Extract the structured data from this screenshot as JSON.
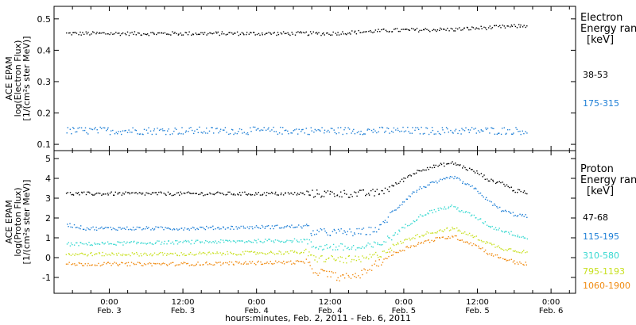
{
  "xaxis": {
    "title": "hours:minutes, Feb.  2, 2011 - Feb.  6, 2011",
    "ticks": [
      {
        "t": 24,
        "time": "0:00",
        "date": "Feb. 3"
      },
      {
        "t": 36,
        "time": "12:00",
        "date": "Feb. 3"
      },
      {
        "t": 48,
        "time": "0:00",
        "date": "Feb. 4"
      },
      {
        "t": 60,
        "time": "12:00",
        "date": "Feb. 4"
      },
      {
        "t": 72,
        "time": "0:00",
        "date": "Feb. 5"
      },
      {
        "t": 84,
        "time": "12:00",
        "date": "Feb. 5"
      },
      {
        "t": 96,
        "time": "0:00",
        "date": "Feb. 6"
      }
    ]
  },
  "chart_data": [
    {
      "type": "scatter",
      "panel": "electron",
      "ylabel": [
        "ACE EPAM",
        "log(Electron Flux)",
        "[1/(cm²s ster MeV)]"
      ],
      "ylim": [
        0.08,
        0.54
      ],
      "yticks": [
        "0.1",
        "0.2",
        "0.3",
        "0.4",
        "0.5"
      ],
      "ytick_values": [
        0.1,
        0.2,
        0.3,
        0.4,
        0.5
      ],
      "xlim_hours": [
        15,
        100
      ],
      "legend_title": [
        "Electron",
        "Energy ran",
        "[keV]"
      ],
      "series": [
        {
          "name": "38-53",
          "color": "#000000",
          "t": [
            17,
            30,
            45,
            60,
            70,
            80,
            90,
            92
          ],
          "y": [
            0.455,
            0.455,
            0.455,
            0.455,
            0.465,
            0.468,
            0.478,
            0.48
          ]
        },
        {
          "name": "175-315",
          "color": "#1e7fd6",
          "t": [
            17,
            40,
            60,
            80,
            92
          ],
          "y": [
            0.145,
            0.145,
            0.145,
            0.145,
            0.145
          ]
        }
      ]
    },
    {
      "type": "scatter",
      "panel": "proton",
      "ylabel": [
        "ACE EPAM",
        "log(Proton Flux)",
        "[1/(cm²s ster MeV)]"
      ],
      "ylim": [
        -1.8,
        5.4
      ],
      "yticks": [
        "-1",
        "0",
        "1",
        "2",
        "3",
        "4",
        "5"
      ],
      "ytick_values": [
        -1,
        0,
        1,
        2,
        3,
        4,
        5
      ],
      "xlim_hours": [
        15,
        100
      ],
      "legend_title": [
        "Proton",
        "Energy ran",
        "[keV]"
      ],
      "series": [
        {
          "name": "47-68",
          "color": "#000000",
          "t": [
            17,
            35,
            50,
            65,
            68,
            70,
            73,
            75,
            78,
            80,
            84,
            86,
            88,
            90,
            92
          ],
          "y": [
            3.25,
            3.25,
            3.25,
            3.25,
            3.3,
            3.6,
            4.2,
            4.5,
            4.7,
            4.8,
            4.3,
            3.9,
            3.8,
            3.4,
            3.3
          ]
        },
        {
          "name": "115-195",
          "color": "#1e7fd6",
          "t": [
            17,
            20,
            35,
            56,
            57,
            65,
            68,
            70,
            73,
            75,
            78,
            80,
            84,
            86,
            88,
            90,
            92
          ],
          "y": [
            1.7,
            1.5,
            1.5,
            1.6,
            1.3,
            1.3,
            1.5,
            2.3,
            3.2,
            3.6,
            3.9,
            4.1,
            3.4,
            2.8,
            2.4,
            2.2,
            2.1
          ]
        },
        {
          "name": "310-580",
          "color": "#36d8d0",
          "t": [
            17,
            35,
            56,
            57,
            65,
            68,
            70,
            73,
            75,
            78,
            80,
            84,
            86,
            88,
            90,
            92
          ],
          "y": [
            0.7,
            0.8,
            0.9,
            0.6,
            0.5,
            0.7,
            1.1,
            1.8,
            2.2,
            2.5,
            2.6,
            2.0,
            1.6,
            1.4,
            1.2,
            1.0
          ]
        },
        {
          "name": "795-1193",
          "color": "#c8e020",
          "t": [
            17,
            35,
            56,
            57,
            65,
            68,
            70,
            73,
            75,
            78,
            80,
            84,
            86,
            88,
            90,
            92
          ],
          "y": [
            0.2,
            0.2,
            0.3,
            0.0,
            -0.1,
            0.2,
            0.6,
            1.0,
            1.2,
            1.4,
            1.5,
            1.0,
            0.7,
            0.5,
            0.4,
            0.3
          ]
        },
        {
          "name": "1060-1900",
          "color": "#f08a10",
          "t": [
            17,
            35,
            56,
            57,
            62,
            65,
            68,
            70,
            73,
            75,
            78,
            80,
            84,
            86,
            88,
            90,
            92
          ],
          "y": [
            -0.3,
            -0.3,
            -0.2,
            -0.6,
            -1.0,
            -0.8,
            -0.2,
            0.2,
            0.6,
            0.8,
            1.0,
            1.1,
            0.6,
            0.2,
            0.0,
            -0.2,
            -0.3
          ]
        }
      ]
    }
  ]
}
